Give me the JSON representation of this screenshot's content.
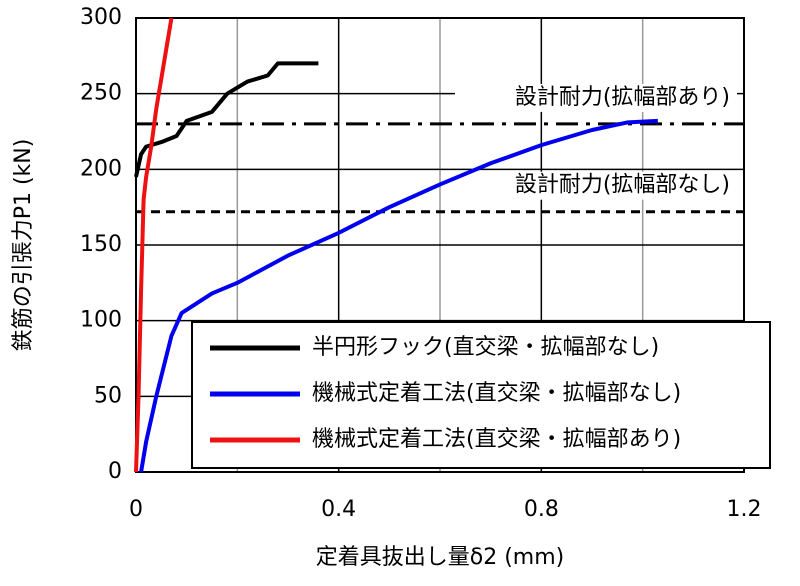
{
  "chart_data": {
    "type": "line",
    "xlabel": "定着具抜出し量δ2 (mm)",
    "ylabel": "鉄筋の引張力P1 (kN)",
    "xlim": [
      0,
      1.2
    ],
    "xticks": [
      0,
      0.4,
      0.8,
      1.2
    ],
    "xminor_grid": [
      0.2,
      0.6,
      1.0
    ],
    "ylim": [
      0,
      300
    ],
    "yticks": [
      0,
      50,
      100,
      150,
      200,
      250,
      300
    ],
    "grid": true,
    "reference_lines": [
      {
        "value": 230,
        "label": "設計耐力(拡幅部あり)",
        "style": "dashdot"
      },
      {
        "value": 172,
        "label": "設計耐力(拡幅部なし)",
        "style": "dashed"
      }
    ],
    "series": [
      {
        "name": "半円形フック(直交梁・拡幅部なし)",
        "color": "#000000",
        "x": [
          0,
          0.01,
          0.02,
          0.05,
          0.08,
          0.1,
          0.15,
          0.18,
          0.22,
          0.26,
          0.28,
          0.36
        ],
        "values": [
          195,
          210,
          215,
          218,
          222,
          232,
          238,
          250,
          258,
          262,
          270,
          270
        ]
      },
      {
        "name": "機械式定着工法(直交梁・拡幅部なし)",
        "color": "#0000ee",
        "x": [
          0.01,
          0.02,
          0.04,
          0.07,
          0.09,
          0.15,
          0.2,
          0.3,
          0.4,
          0.5,
          0.6,
          0.7,
          0.8,
          0.9,
          0.97,
          1.03
        ],
        "values": [
          0,
          20,
          50,
          90,
          105,
          118,
          125,
          143,
          158,
          175,
          190,
          204,
          216,
          226,
          231,
          232
        ]
      },
      {
        "name": "機械式定着工法(直交梁・拡幅部あり)",
        "color": "#ee1111",
        "x": [
          0,
          0.005,
          0.01,
          0.015,
          0.02,
          0.03,
          0.04,
          0.05,
          0.06,
          0.07
        ],
        "values": [
          0,
          50,
          120,
          180,
          195,
          215,
          240,
          260,
          280,
          300
        ]
      }
    ],
    "legend": "lower-right"
  }
}
